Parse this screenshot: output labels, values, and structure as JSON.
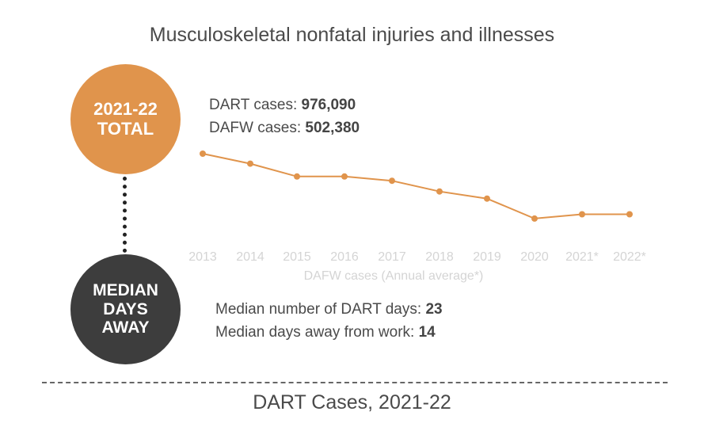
{
  "title": "Musculoskeletal nonfatal injuries and illnesses",
  "total_circle": {
    "line1": "2021-22",
    "line2": "TOTAL"
  },
  "median_circle": {
    "line1": "MEDIAN",
    "line2": "DAYS",
    "line3": "AWAY"
  },
  "totals": {
    "dart_label": "DART cases: ",
    "dart_value": "976,090",
    "dafw_label": "DAFW cases: ",
    "dafw_value": "502,380"
  },
  "medians": {
    "dart_days_label": "Median number of DART days: ",
    "dart_days_value": "23",
    "days_away_label": "Median days away from work: ",
    "days_away_value": "14"
  },
  "footer": "DART Cases, 2021-22",
  "colors": {
    "accent": "#e0944c",
    "dark": "#3d3d3d",
    "tick": "#d4d4d4"
  },
  "chart_data": {
    "type": "line",
    "xlabel": "DAFW cases (Annual average*)",
    "ylabel": "",
    "x": [
      "2013",
      "2014",
      "2015",
      "2016",
      "2017",
      "2018",
      "2019",
      "2020",
      "2021*",
      "2022*"
    ],
    "values": [
      100,
      86,
      68,
      68,
      62,
      47,
      37,
      9,
      15,
      15
    ],
    "ylim": [
      0,
      100
    ],
    "grid": false,
    "color": "#e0944c"
  }
}
